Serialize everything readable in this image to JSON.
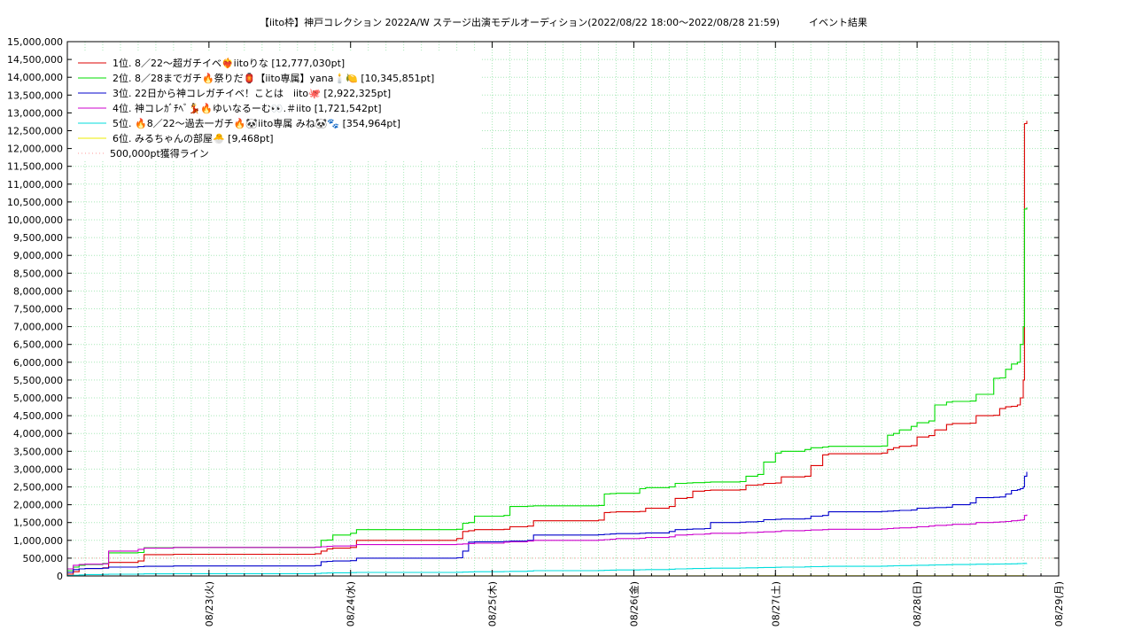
{
  "chart_data": {
    "type": "line",
    "title": "【iito枠】神戸コレクション 2022A/W ステージ出演モデルオーディション(2022/08/22 18:00〜2022/08/28 21:59)　　　イベント結果",
    "xlabel": "",
    "ylabel": "",
    "x_ticks": [
      "08/23(火)",
      "08/24(水)",
      "08/25(木)",
      "08/26(金)",
      "08/27(土)",
      "08/28(日)",
      "08/29(月)"
    ],
    "x_range_hours": [
      -18,
      150
    ],
    "ylim": [
      0,
      15000000
    ],
    "y_ticks": [
      "0",
      "500,000",
      "1,000,000",
      "1,500,000",
      "2,000,000",
      "2,500,000",
      "3,000,000",
      "3,500,000",
      "4,000,000",
      "4,500,000",
      "5,000,000",
      "5,500,000",
      "6,000,000",
      "6,500,000",
      "7,000,000",
      "7,500,000",
      "8,000,000",
      "8,500,000",
      "9,000,000",
      "9,500,000",
      "10,000,000",
      "10,500,000",
      "11,000,000",
      "11,500,000",
      "12,000,000",
      "12,500,000",
      "13,000,000",
      "13,500,000",
      "14,000,000",
      "14,500,000",
      "15,000,000"
    ],
    "y_values": [
      0,
      500000,
      1000000,
      1500000,
      2000000,
      2500000,
      3000000,
      3500000,
      4000000,
      4500000,
      5000000,
      5500000,
      6000000,
      6500000,
      7000000,
      7500000,
      8000000,
      8500000,
      9000000,
      9500000,
      10000000,
      10500000,
      11000000,
      11500000,
      12000000,
      12500000,
      13000000,
      13500000,
      14000000,
      14500000,
      15000000
    ],
    "grid": true,
    "legend": "top-left",
    "reference_line": {
      "name": "500,000pt獲得ライン",
      "y": 500000,
      "color": "#ff9999"
    },
    "series": [
      {
        "name": "1位. 8／22〜超ガチイベ❤️‍🔥iitoりな [12,777,030pt]",
        "color": "#dd0000",
        "x": [
          -18,
          -17,
          -16,
          -15,
          -12,
          -11,
          -6,
          -5,
          0,
          24,
          25,
          26,
          27,
          30,
          31,
          48,
          49,
          50,
          51,
          56,
          57,
          60,
          61,
          72,
          73,
          74,
          75,
          79,
          80,
          84,
          85,
          87,
          88,
          90,
          91,
          96,
          97,
          99,
          100,
          102,
          103,
          107,
          108,
          110,
          111,
          120,
          121,
          122,
          123,
          125,
          126,
          128,
          129,
          131,
          132,
          135,
          136,
          139,
          140,
          141,
          142,
          143,
          143.5,
          144,
          144.2,
          144.6
        ],
        "values": [
          50000,
          120000,
          200000,
          210000,
          230000,
          380000,
          420000,
          600000,
          610000,
          625000,
          700000,
          760000,
          780000,
          800000,
          1000000,
          1050000,
          1250000,
          1270000,
          1300000,
          1310000,
          1380000,
          1400000,
          1550000,
          1570000,
          1780000,
          1790000,
          1800000,
          1810000,
          1900000,
          1950000,
          2180000,
          2200000,
          2380000,
          2400000,
          2410000,
          2420000,
          2550000,
          2560000,
          2600000,
          2610000,
          2780000,
          2800000,
          3100000,
          3400000,
          3430000,
          3450000,
          3550000,
          3600000,
          3640000,
          3660000,
          3900000,
          3940000,
          4100000,
          4250000,
          4280000,
          4290000,
          4500000,
          4510000,
          4700000,
          4750000,
          4760000,
          4800000,
          5000000,
          5500000,
          12700000,
          12777030
        ]
      },
      {
        "name": "2位. 8／28までガチ🔥祭りだ🏮【iito専属】yana🕯️🍋 [10,345,851pt]",
        "color": "#00dd00",
        "x": [
          -18,
          -17,
          -16,
          -15,
          -12,
          -11,
          -6,
          -5,
          0,
          24,
          25,
          26,
          27,
          30,
          31,
          48,
          49,
          50,
          51,
          56,
          57,
          60,
          61,
          72,
          73,
          74,
          75,
          79,
          80,
          84,
          85,
          87,
          88,
          90,
          91,
          96,
          97,
          99,
          100,
          102,
          103,
          107,
          108,
          110,
          111,
          120,
          121,
          122,
          123,
          125,
          126,
          128,
          129,
          131,
          132,
          135,
          136,
          139,
          140,
          141,
          142,
          143,
          143.5,
          144,
          144.2,
          144.6
        ],
        "values": [
          150000,
          250000,
          300000,
          320000,
          350000,
          650000,
          660000,
          790000,
          800000,
          810000,
          1000000,
          1010000,
          1150000,
          1200000,
          1300000,
          1310000,
          1480000,
          1500000,
          1680000,
          1700000,
          1950000,
          1960000,
          1970000,
          1980000,
          2300000,
          2310000,
          2320000,
          2450000,
          2480000,
          2500000,
          2600000,
          2610000,
          2620000,
          2630000,
          2640000,
          2650000,
          2800000,
          2850000,
          3200000,
          3450000,
          3500000,
          3550000,
          3600000,
          3620000,
          3640000,
          3650000,
          3950000,
          4000000,
          4100000,
          4200000,
          4300000,
          4350000,
          4800000,
          4880000,
          4900000,
          4910000,
          5100000,
          5550000,
          5560000,
          5800000,
          5950000,
          6000000,
          6500000,
          7000000,
          10300000,
          10345851
        ]
      },
      {
        "name": "3位. 22日から神コレガチイベ！ことは　iito🐙 [2,922,325pt]",
        "color": "#0000cc",
        "x": [
          -18,
          -17,
          -16,
          -15,
          -12,
          -11,
          -6,
          -5,
          0,
          24,
          25,
          26,
          27,
          30,
          31,
          48,
          49,
          50,
          51,
          56,
          57,
          60,
          61,
          72,
          73,
          74,
          75,
          79,
          80,
          84,
          85,
          87,
          88,
          90,
          91,
          96,
          97,
          99,
          100,
          102,
          103,
          107,
          108,
          110,
          111,
          120,
          121,
          122,
          123,
          125,
          126,
          128,
          129,
          131,
          132,
          135,
          136,
          139,
          140,
          141,
          142,
          143,
          143.5,
          144,
          144.2,
          144.6
        ],
        "values": [
          100000,
          180000,
          200000,
          210000,
          220000,
          250000,
          260000,
          270000,
          280000,
          290000,
          400000,
          410000,
          420000,
          430000,
          500000,
          510000,
          700000,
          950000,
          960000,
          970000,
          980000,
          1000000,
          1150000,
          1160000,
          1170000,
          1180000,
          1190000,
          1200000,
          1210000,
          1250000,
          1300000,
          1310000,
          1320000,
          1330000,
          1500000,
          1510000,
          1520000,
          1530000,
          1580000,
          1590000,
          1600000,
          1610000,
          1680000,
          1700000,
          1800000,
          1810000,
          1820000,
          1830000,
          1840000,
          1850000,
          1900000,
          1910000,
          1920000,
          1930000,
          2000000,
          2050000,
          2200000,
          2210000,
          2220000,
          2300000,
          2400000,
          2420000,
          2450000,
          2500000,
          2800000,
          2922325
        ]
      },
      {
        "name": "4位. 神コレｶﾞﾁﾍﾞ💃🔥ゆいなるーむ👀.＃iito [1,721,542pt]",
        "color": "#cc00cc",
        "x": [
          -18,
          -17,
          -16,
          -15,
          -12,
          -11,
          -6,
          -5,
          0,
          24,
          25,
          26,
          27,
          30,
          31,
          48,
          49,
          50,
          51,
          56,
          57,
          60,
          61,
          72,
          73,
          74,
          75,
          79,
          80,
          84,
          85,
          87,
          88,
          90,
          91,
          96,
          97,
          99,
          100,
          102,
          103,
          107,
          108,
          110,
          111,
          120,
          121,
          122,
          123,
          125,
          126,
          128,
          129,
          131,
          132,
          135,
          136,
          139,
          140,
          141,
          142,
          143,
          143.5,
          144,
          144.2,
          144.6
        ],
        "values": [
          200000,
          300000,
          320000,
          330000,
          340000,
          700000,
          750000,
          780000,
          800000,
          810000,
          820000,
          830000,
          840000,
          850000,
          880000,
          890000,
          900000,
          910000,
          920000,
          950000,
          960000,
          980000,
          1000000,
          1010000,
          1020000,
          1030000,
          1050000,
          1060000,
          1080000,
          1100000,
          1150000,
          1160000,
          1170000,
          1180000,
          1200000,
          1210000,
          1220000,
          1230000,
          1240000,
          1250000,
          1270000,
          1280000,
          1290000,
          1300000,
          1310000,
          1320000,
          1330000,
          1340000,
          1350000,
          1360000,
          1380000,
          1400000,
          1420000,
          1430000,
          1450000,
          1460000,
          1500000,
          1510000,
          1520000,
          1530000,
          1550000,
          1560000,
          1570000,
          1580000,
          1700000,
          1721542
        ]
      },
      {
        "name": "5位. 🔥8／22〜過去一ガチ🔥🐼iito専属 みね🐼🐾 [354,964pt]",
        "color": "#00dddd",
        "x": [
          -18,
          -17,
          -16,
          -15,
          -12,
          -11,
          -6,
          -5,
          0,
          24,
          25,
          26,
          27,
          30,
          31,
          48,
          49,
          50,
          51,
          56,
          57,
          60,
          61,
          72,
          73,
          74,
          75,
          79,
          80,
          84,
          85,
          87,
          88,
          90,
          91,
          96,
          97,
          99,
          100,
          102,
          103,
          107,
          108,
          110,
          111,
          120,
          121,
          122,
          123,
          125,
          126,
          128,
          129,
          131,
          132,
          135,
          136,
          139,
          140,
          141,
          142,
          143,
          143.5,
          144,
          144.2,
          144.6
        ],
        "values": [
          10000,
          20000,
          30000,
          40000,
          45000,
          50000,
          55000,
          60000,
          65000,
          70000,
          80000,
          85000,
          90000,
          95000,
          100000,
          105000,
          110000,
          115000,
          120000,
          125000,
          130000,
          140000,
          150000,
          155000,
          160000,
          165000,
          170000,
          175000,
          180000,
          190000,
          200000,
          205000,
          210000,
          215000,
          220000,
          225000,
          230000,
          235000,
          240000,
          245000,
          250000,
          255000,
          260000,
          265000,
          270000,
          275000,
          280000,
          285000,
          290000,
          295000,
          300000,
          305000,
          310000,
          315000,
          320000,
          325000,
          330000,
          333000,
          336000,
          339000,
          342000,
          345000,
          348000,
          350000,
          352000,
          354964
        ]
      },
      {
        "name": "6位. みるちゃんの部屋🐣 [9,468pt]",
        "color": "#eeee00",
        "x": [
          -18,
          0,
          48,
          96,
          144.6
        ],
        "values": [
          0,
          1000,
          3000,
          6000,
          9468
        ]
      }
    ]
  }
}
